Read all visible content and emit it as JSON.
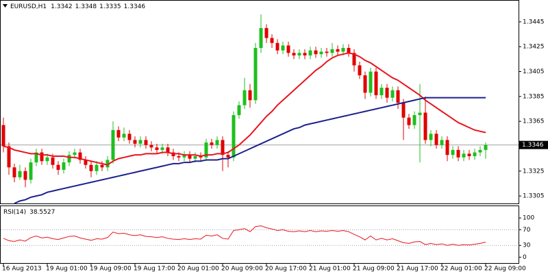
{
  "chart_data": {
    "type": "candlestick",
    "symbol": "EURUSD,H1",
    "header_ohlc": [
      1.3342,
      1.3348,
      1.3335,
      1.3346
    ],
    "categories": [
      "16 Aug 2013",
      null,
      null,
      null,
      null,
      null,
      null,
      null,
      "19 Aug 01:00",
      null,
      null,
      null,
      null,
      null,
      null,
      null,
      "19 Aug 09:00",
      null,
      null,
      null,
      null,
      null,
      null,
      null,
      "19 Aug 17:00",
      null,
      null,
      null,
      null,
      null,
      null,
      null,
      "20 Aug 01:00",
      null,
      null,
      null,
      null,
      null,
      null,
      null,
      "20 Aug 09:00",
      null,
      null,
      null,
      null,
      null,
      null,
      null,
      "20 Aug 17:00",
      null,
      null,
      null,
      null,
      null,
      null,
      null,
      "21 Aug 01:00",
      null,
      null,
      null,
      null,
      null,
      null,
      null,
      "21 Aug 09:00",
      null,
      null,
      null,
      null,
      null,
      null,
      null,
      "21 Aug 17:00",
      null,
      null,
      null,
      null,
      null,
      null,
      null,
      "22 Aug 01:00",
      null,
      null,
      null,
      null,
      null,
      null,
      null,
      "22 Aug 09:00"
    ],
    "open": [
      1.3362,
      1.3345,
      1.3328,
      1.332,
      1.3325,
      1.3318,
      1.3332,
      1.334,
      1.3333,
      1.3336,
      1.333,
      1.3326,
      1.3332,
      1.3338,
      1.334,
      1.3334,
      1.333,
      1.3325,
      1.333,
      1.3328,
      1.3334,
      1.3358,
      1.3352,
      1.3355,
      1.335,
      1.3347,
      1.335,
      1.3346,
      1.3344,
      1.3342,
      1.3344,
      1.334,
      1.3337,
      1.3336,
      1.3338,
      1.3335,
      1.3337,
      1.3336,
      1.3348,
      1.3346,
      1.335,
      1.3338,
      1.3336,
      1.337,
      1.3378,
      1.339,
      1.3382,
      1.3424,
      1.344,
      1.3432,
      1.3428,
      1.3422,
      1.3426,
      1.342,
      1.3418,
      1.342,
      1.3418,
      1.3422,
      1.3419,
      1.3421,
      1.342,
      1.3423,
      1.3421,
      1.3424,
      1.342,
      1.341,
      1.3402,
      1.3388,
      1.3405,
      1.3386,
      1.3392,
      1.3384,
      1.339,
      1.338,
      1.3368,
      1.3362,
      1.337,
      1.3372,
      1.335,
      1.3355,
      1.3346,
      1.335,
      1.3338,
      1.3342,
      1.3336,
      1.3339,
      1.3337,
      1.334,
      1.3342
    ],
    "high": [
      1.3368,
      1.3348,
      1.3331,
      1.333,
      1.3328,
      1.3335,
      1.3343,
      1.3343,
      1.3339,
      1.3339,
      1.3333,
      1.3335,
      1.3341,
      1.3343,
      1.3343,
      1.3337,
      1.3333,
      1.3333,
      1.3333,
      1.3337,
      1.3365,
      1.3361,
      1.336,
      1.3358,
      1.3353,
      1.3353,
      1.3353,
      1.3349,
      1.3347,
      1.3347,
      1.3347,
      1.3343,
      1.334,
      1.3341,
      1.3341,
      1.334,
      1.334,
      1.3351,
      1.3351,
      1.3353,
      1.3353,
      1.3341,
      1.3373,
      1.3381,
      1.34,
      1.3395,
      1.3428,
      1.3451,
      1.3443,
      1.3435,
      1.3431,
      1.3429,
      1.3429,
      1.3423,
      1.3423,
      1.3423,
      1.3425,
      1.3425,
      1.3424,
      1.3424,
      1.3428,
      1.3426,
      1.3427,
      1.3427,
      1.3423,
      1.3413,
      1.3405,
      1.3408,
      1.3408,
      1.3395,
      1.3395,
      1.3393,
      1.3393,
      1.3383,
      1.3371,
      1.3373,
      1.3395,
      1.3385,
      1.3358,
      1.3358,
      1.3353,
      1.3353,
      1.3345,
      1.3345,
      1.3342,
      1.3342,
      1.3343,
      1.3345,
      1.3348
    ],
    "low": [
      1.334,
      1.3322,
      1.3316,
      1.3318,
      1.3312,
      1.3315,
      1.3329,
      1.333,
      1.333,
      1.3327,
      1.3322,
      1.3323,
      1.3329,
      1.3335,
      1.3331,
      1.3327,
      1.332,
      1.3322,
      1.3325,
      1.3325,
      1.3331,
      1.3349,
      1.3349,
      1.3347,
      1.3344,
      1.3344,
      1.3343,
      1.3341,
      1.3339,
      1.3339,
      1.3337,
      1.3334,
      1.3333,
      1.3333,
      1.3332,
      1.3332,
      1.3333,
      1.3333,
      1.3343,
      1.3343,
      1.3325,
      1.3328,
      1.3333,
      1.3367,
      1.3375,
      1.3376,
      1.3379,
      1.342,
      1.3428,
      1.3424,
      1.3419,
      1.3419,
      1.3417,
      1.3415,
      1.3415,
      1.3415,
      1.3415,
      1.3416,
      1.3416,
      1.3417,
      1.3417,
      1.3418,
      1.3418,
      1.3417,
      1.3405,
      1.3399,
      1.3383,
      1.3385,
      1.3383,
      1.3383,
      1.338,
      1.3381,
      1.3375,
      1.335,
      1.3359,
      1.3359,
      1.3332,
      1.3347,
      1.3345,
      1.3343,
      1.3343,
      1.3333,
      1.3335,
      1.3333,
      1.3333,
      1.3334,
      1.3334,
      1.3337,
      1.3335
    ],
    "close": [
      1.3345,
      1.3328,
      1.332,
      1.3325,
      1.3318,
      1.3332,
      1.334,
      1.3333,
      1.3336,
      1.333,
      1.3326,
      1.3332,
      1.3338,
      1.334,
      1.3334,
      1.333,
      1.3325,
      1.333,
      1.3328,
      1.3334,
      1.3358,
      1.3352,
      1.3355,
      1.335,
      1.3347,
      1.335,
      1.3346,
      1.3344,
      1.3342,
      1.3344,
      1.334,
      1.3337,
      1.3336,
      1.3338,
      1.3335,
      1.3337,
      1.3336,
      1.3348,
      1.3346,
      1.335,
      1.3338,
      1.3336,
      1.337,
      1.3378,
      1.339,
      1.3382,
      1.3424,
      1.344,
      1.3432,
      1.3428,
      1.3422,
      1.3426,
      1.342,
      1.3418,
      1.342,
      1.3418,
      1.3422,
      1.3419,
      1.3421,
      1.342,
      1.3423,
      1.3421,
      1.3424,
      1.342,
      1.341,
      1.3402,
      1.3388,
      1.3405,
      1.3386,
      1.3392,
      1.3384,
      1.339,
      1.338,
      1.3368,
      1.3362,
      1.337,
      1.3372,
      1.335,
      1.3355,
      1.3346,
      1.335,
      1.3338,
      1.3342,
      1.3336,
      1.3339,
      1.3337,
      1.334,
      1.3342,
      1.3346
    ],
    "up_color": "#1fbf1f",
    "down_color": "#e00000",
    "ylim": [
      1.3299,
      1.3462
    ],
    "yticks": [
      1.3445,
      1.3425,
      1.3405,
      1.3385,
      1.3365,
      1.3325,
      1.3305
    ],
    "current_price": 1.3346,
    "series": [
      {
        "color": "#e8141c",
        "values": [
          1.3345,
          1.3344,
          1.3342,
          1.3341,
          1.334,
          1.3339,
          1.3339,
          1.3338,
          1.3338,
          1.3337,
          1.3337,
          1.3337,
          1.3336,
          1.3336,
          1.3335,
          1.3334,
          1.3333,
          1.3332,
          1.3331,
          1.333,
          1.3333,
          1.3335,
          1.3336,
          1.3337,
          1.3338,
          1.3338,
          1.3339,
          1.3339,
          1.3339,
          1.334,
          1.334,
          1.3339,
          1.3339,
          1.3338,
          1.3338,
          1.3338,
          1.3337,
          1.3338,
          1.3338,
          1.3339,
          1.3339,
          1.334,
          1.3343,
          1.3346,
          1.335,
          1.3354,
          1.3359,
          1.3364,
          1.3369,
          1.3373,
          1.3378,
          1.3382,
          1.3386,
          1.339,
          1.3394,
          1.3398,
          1.3402,
          1.3406,
          1.3409,
          1.3413,
          1.3416,
          1.3418,
          1.3419,
          1.342,
          1.3419,
          1.3417,
          1.3414,
          1.3412,
          1.3409,
          1.3406,
          1.3403,
          1.34,
          1.3398,
          1.3395,
          1.3392,
          1.3389,
          1.3386,
          1.3382,
          1.3379,
          1.3376,
          1.3373,
          1.337,
          1.3367,
          1.3364,
          1.3362,
          1.336,
          1.3358,
          1.3357,
          1.3356
        ]
      },
      {
        "color": "#1c1f8c",
        "values": [
          null,
          null,
          1.3299,
          1.3301,
          1.3302,
          1.3304,
          1.3305,
          1.3306,
          1.3308,
          1.3309,
          1.331,
          1.3311,
          1.3312,
          1.3313,
          1.3314,
          1.3315,
          1.3316,
          1.3317,
          1.3318,
          1.3319,
          1.332,
          1.3321,
          1.3322,
          1.3323,
          1.3324,
          1.3325,
          1.3326,
          1.3327,
          1.3328,
          1.3329,
          1.333,
          1.3331,
          1.3331,
          1.3332,
          1.3332,
          1.3333,
          1.3333,
          1.3334,
          1.3334,
          1.3334,
          1.3335,
          1.3335,
          1.3337,
          1.3339,
          1.3341,
          1.3343,
          1.3345,
          1.3347,
          1.3349,
          1.3351,
          1.3353,
          1.3355,
          1.3357,
          1.3359,
          1.336,
          1.3362,
          1.3363,
          1.3364,
          1.3365,
          1.3366,
          1.3367,
          1.3368,
          1.3369,
          1.337,
          1.3371,
          1.3372,
          1.3373,
          1.3374,
          1.3375,
          1.3376,
          1.3377,
          1.3378,
          1.3379,
          1.338,
          1.3381,
          1.3382,
          1.3383,
          1.3384,
          1.3384,
          1.3384,
          1.3384,
          1.3384,
          1.3384,
          1.3384,
          1.3384,
          1.3384,
          1.3384,
          1.3384,
          1.3384
        ]
      }
    ],
    "indicator": {
      "name": "RSI(14)",
      "color": "#e8141c",
      "values": [
        48,
        42,
        40,
        44,
        41,
        50,
        54,
        49,
        51,
        47,
        45,
        49,
        53,
        54,
        49,
        46,
        43,
        47,
        46,
        50,
        64,
        60,
        61,
        57,
        55,
        57,
        53,
        52,
        50,
        52,
        48,
        46,
        45,
        47,
        45,
        47,
        46,
        56,
        54,
        57,
        48,
        46,
        68,
        70,
        73,
        65,
        78,
        80,
        75,
        72,
        68,
        70,
        66,
        65,
        67,
        65,
        68,
        65,
        67,
        66,
        68,
        66,
        68,
        65,
        58,
        52,
        44,
        54,
        44,
        48,
        44,
        47,
        42,
        37,
        35,
        39,
        40,
        32,
        35,
        32,
        34,
        30,
        33,
        30,
        32,
        31,
        33,
        35,
        38.5527
      ],
      "ylim": [
        -15,
        130
      ],
      "yticks": [
        100,
        70,
        30,
        0
      ],
      "levels": [
        70,
        30
      ]
    }
  }
}
